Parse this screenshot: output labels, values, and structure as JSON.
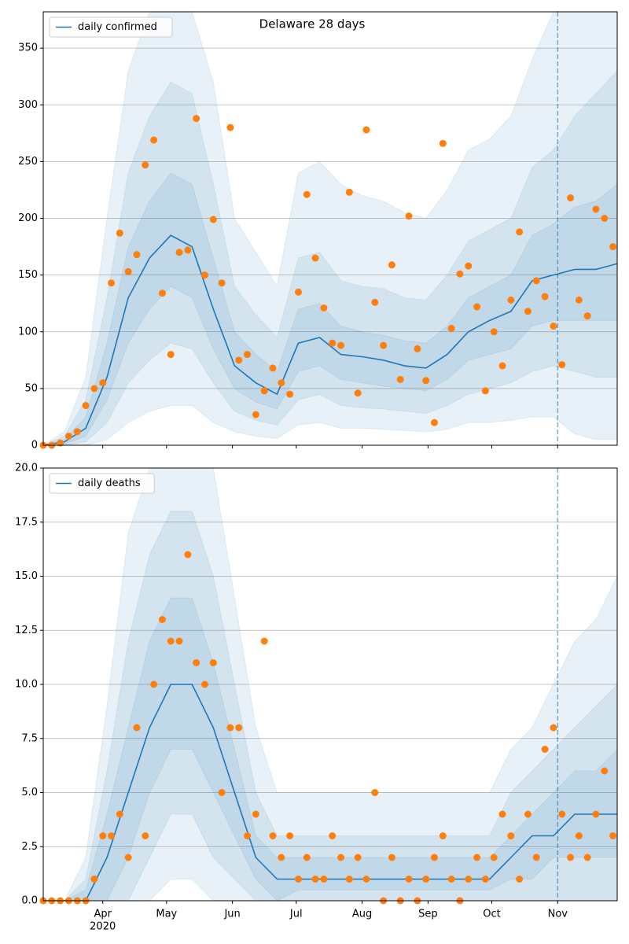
{
  "chart_data": [
    {
      "type": "line",
      "title": "Delaware 28 days",
      "xlim": [
        64,
        334
      ],
      "ylim": [
        0,
        382
      ],
      "yticks": [
        0,
        50,
        100,
        150,
        200,
        250,
        300,
        350
      ],
      "grid": true,
      "legend": "upper left",
      "vline": 306,
      "x": [
        64,
        74,
        84,
        94,
        104,
        114,
        124,
        134,
        144,
        154,
        164,
        174,
        184,
        194,
        204,
        214,
        224,
        234,
        244,
        254,
        264,
        274,
        284,
        294,
        304,
        314,
        324,
        334
      ],
      "series": [
        {
          "name": "daily confirmed",
          "color": "#1f77b4",
          "values": [
            0,
            3,
            15,
            60,
            130,
            165,
            185,
            175,
            120,
            70,
            55,
            45,
            90,
            95,
            80,
            78,
            75,
            70,
            68,
            80,
            100,
            110,
            118,
            145,
            150,
            155,
            155,
            160
          ]
        }
      ],
      "bands": [
        {
          "color": "#1f77b4",
          "lower": [
            0,
            0,
            0,
            5,
            20,
            30,
            35,
            35,
            20,
            12,
            8,
            6,
            18,
            20,
            15,
            15,
            14,
            13,
            12,
            14,
            20,
            20,
            22,
            25,
            25,
            10,
            5,
            5
          ],
          "upper": [
            0,
            12,
            60,
            200,
            330,
            382,
            382,
            382,
            320,
            200,
            170,
            140,
            240,
            250,
            230,
            220,
            215,
            205,
            200,
            225,
            260,
            270,
            290,
            340,
            382,
            382,
            382,
            382
          ]
        },
        {
          "color": "#1f77b4",
          "lower": [
            0,
            0,
            3,
            20,
            55,
            75,
            90,
            85,
            55,
            30,
            22,
            18,
            40,
            45,
            35,
            33,
            32,
            30,
            28,
            35,
            45,
            50,
            55,
            65,
            70,
            65,
            60,
            60
          ],
          "upper": [
            0,
            8,
            40,
            130,
            240,
            290,
            320,
            310,
            230,
            140,
            115,
            95,
            165,
            170,
            145,
            140,
            138,
            130,
            128,
            150,
            180,
            190,
            200,
            245,
            260,
            290,
            310,
            330
          ]
        },
        {
          "color": "#1f77b4",
          "lower": [
            0,
            1,
            8,
            40,
            90,
            120,
            140,
            130,
            85,
            50,
            38,
            32,
            65,
            70,
            58,
            55,
            52,
            50,
            48,
            58,
            75,
            80,
            85,
            105,
            110,
            110,
            110,
            110
          ],
          "upper": [
            0,
            5,
            25,
            90,
            175,
            215,
            240,
            230,
            165,
            100,
            80,
            65,
            120,
            125,
            105,
            100,
            97,
            92,
            90,
            105,
            130,
            140,
            150,
            185,
            195,
            210,
            215,
            230
          ]
        }
      ],
      "scatter": {
        "color": "#ff7f0e",
        "x": [
          64,
          68,
          72,
          76,
          80,
          84,
          88,
          92,
          96,
          100,
          104,
          108,
          112,
          116,
          120,
          124,
          128,
          132,
          136,
          140,
          144,
          148,
          152,
          156,
          160,
          164,
          168,
          172,
          176,
          180,
          184,
          188,
          192,
          196,
          200,
          204,
          208,
          212,
          216,
          220,
          224,
          228,
          232,
          236,
          240,
          244,
          248,
          252,
          256,
          260,
          264,
          268,
          272,
          276,
          280,
          284,
          288,
          292,
          296,
          300,
          304,
          308,
          312,
          316,
          320,
          324,
          328,
          332
        ],
        "values": [
          0,
          0,
          2,
          8,
          12,
          35,
          50,
          55,
          143,
          187,
          153,
          168,
          247,
          269,
          134,
          80,
          170,
          172,
          288,
          150,
          199,
          143,
          280,
          75,
          80,
          27,
          48,
          68,
          55,
          45,
          135,
          221,
          165,
          121,
          90,
          88,
          223,
          46,
          278,
          126,
          88,
          159,
          58,
          202,
          85,
          57,
          20,
          266,
          103,
          151,
          158,
          122,
          48,
          100,
          70,
          128,
          188,
          118,
          145,
          131,
          105,
          71,
          218,
          128,
          114,
          208,
          200,
          175
        ]
      }
    },
    {
      "type": "line",
      "xlim": [
        64,
        334
      ],
      "ylim": [
        0,
        20
      ],
      "xticks": [
        {
          "value": 92,
          "label": "Apr"
        },
        {
          "value": 122,
          "label": "May"
        },
        {
          "value": 153,
          "label": "Jun"
        },
        {
          "value": 183,
          "label": "Jul"
        },
        {
          "value": 214,
          "label": "Aug"
        },
        {
          "value": 245,
          "label": "Sep"
        },
        {
          "value": 275,
          "label": "Oct"
        },
        {
          "value": 306,
          "label": "Nov"
        }
      ],
      "year_label": "2020",
      "yticks": [
        {
          "value": 0,
          "label": "0.0"
        },
        2.5,
        {
          "value": 5,
          "label": "5.0"
        },
        7.5,
        {
          "value": 10,
          "label": "10.0"
        },
        12.5,
        {
          "value": 15,
          "label": "15.0"
        },
        17.5,
        {
          "value": 20,
          "label": "20.0"
        }
      ],
      "grid": true,
      "legend": "upper left",
      "vline": 306,
      "x": [
        64,
        74,
        84,
        94,
        104,
        114,
        124,
        134,
        144,
        154,
        164,
        174,
        184,
        194,
        204,
        214,
        224,
        234,
        244,
        254,
        264,
        274,
        284,
        294,
        304,
        314,
        324,
        334
      ],
      "series": [
        {
          "name": "daily deaths",
          "color": "#1f77b4",
          "values": [
            0,
            0,
            0,
            2,
            5,
            8,
            10,
            10,
            8,
            5,
            2,
            1,
            1,
            1,
            1,
            1,
            1,
            1,
            1,
            1,
            1,
            1,
            2,
            3,
            3,
            4,
            4,
            4
          ]
        }
      ],
      "bands": [
        {
          "color": "#1f77b4",
          "lower": [
            0,
            0,
            0,
            0,
            0,
            0,
            1,
            1,
            0,
            0,
            0,
            0,
            0,
            0,
            0,
            0,
            0,
            0,
            0,
            0,
            0,
            0,
            0,
            0,
            0,
            0,
            0,
            0
          ],
          "upper": [
            0,
            0,
            2,
            9,
            17,
            20,
            20,
            20,
            20,
            14,
            8,
            5,
            5,
            5,
            5,
            5,
            5,
            5,
            5,
            5,
            5,
            5,
            7,
            8,
            10,
            12,
            13,
            15
          ]
        },
        {
          "color": "#1f77b4",
          "lower": [
            0,
            0,
            0,
            0,
            0,
            2,
            4,
            4,
            2,
            1,
            0,
            0,
            0,
            0,
            0,
            0,
            0,
            0,
            0,
            0,
            0,
            0,
            0,
            0,
            0,
            0,
            0,
            0
          ],
          "upper": [
            0,
            0,
            1,
            6,
            12,
            16,
            18,
            18,
            15,
            10,
            5,
            3,
            3,
            3,
            3,
            3,
            3,
            3,
            3,
            3,
            3,
            3,
            5,
            6,
            7,
            8,
            9,
            10
          ]
        },
        {
          "color": "#1f77b4",
          "lower": [
            0,
            0,
            0,
            0,
            2,
            5,
            7,
            7,
            5,
            3,
            1,
            0,
            0.5,
            0.5,
            0.5,
            0.5,
            0.5,
            0.5,
            0.5,
            0.5,
            0.5,
            0.5,
            1,
            1,
            2,
            2,
            2,
            2
          ],
          "upper": [
            0,
            0,
            0.5,
            4,
            8,
            12,
            14,
            14,
            11,
            7,
            3,
            2,
            2,
            2,
            2,
            2,
            2,
            2,
            2,
            2,
            2,
            2,
            3,
            4,
            5,
            6,
            6,
            7
          ]
        }
      ],
      "scatter": {
        "color": "#ff7f0e",
        "x": [
          64,
          68,
          72,
          76,
          80,
          84,
          88,
          92,
          96,
          100,
          104,
          108,
          112,
          116,
          120,
          124,
          128,
          132,
          136,
          140,
          144,
          148,
          152,
          156,
          160,
          164,
          168,
          172,
          176,
          180,
          184,
          188,
          192,
          196,
          200,
          204,
          208,
          212,
          216,
          220,
          224,
          228,
          232,
          236,
          240,
          244,
          248,
          252,
          256,
          260,
          264,
          268,
          272,
          276,
          280,
          284,
          288,
          292,
          296,
          300,
          304,
          308,
          312,
          316,
          320,
          324,
          328,
          332
        ],
        "values": [
          0,
          0,
          0,
          0,
          0,
          0,
          1,
          3,
          3,
          4,
          2,
          8,
          3,
          10,
          13,
          12,
          12,
          16,
          11,
          10,
          11,
          5,
          8,
          8,
          3,
          4,
          12,
          3,
          2,
          3,
          1,
          2,
          1,
          1,
          3,
          2,
          1,
          2,
          1,
          5,
          0,
          2,
          0,
          1,
          0,
          1,
          2,
          3,
          1,
          0,
          1,
          2,
          1,
          2,
          4,
          3,
          1,
          4,
          2,
          7,
          8,
          4,
          2,
          3,
          2,
          4,
          6,
          3
        ]
      }
    }
  ]
}
